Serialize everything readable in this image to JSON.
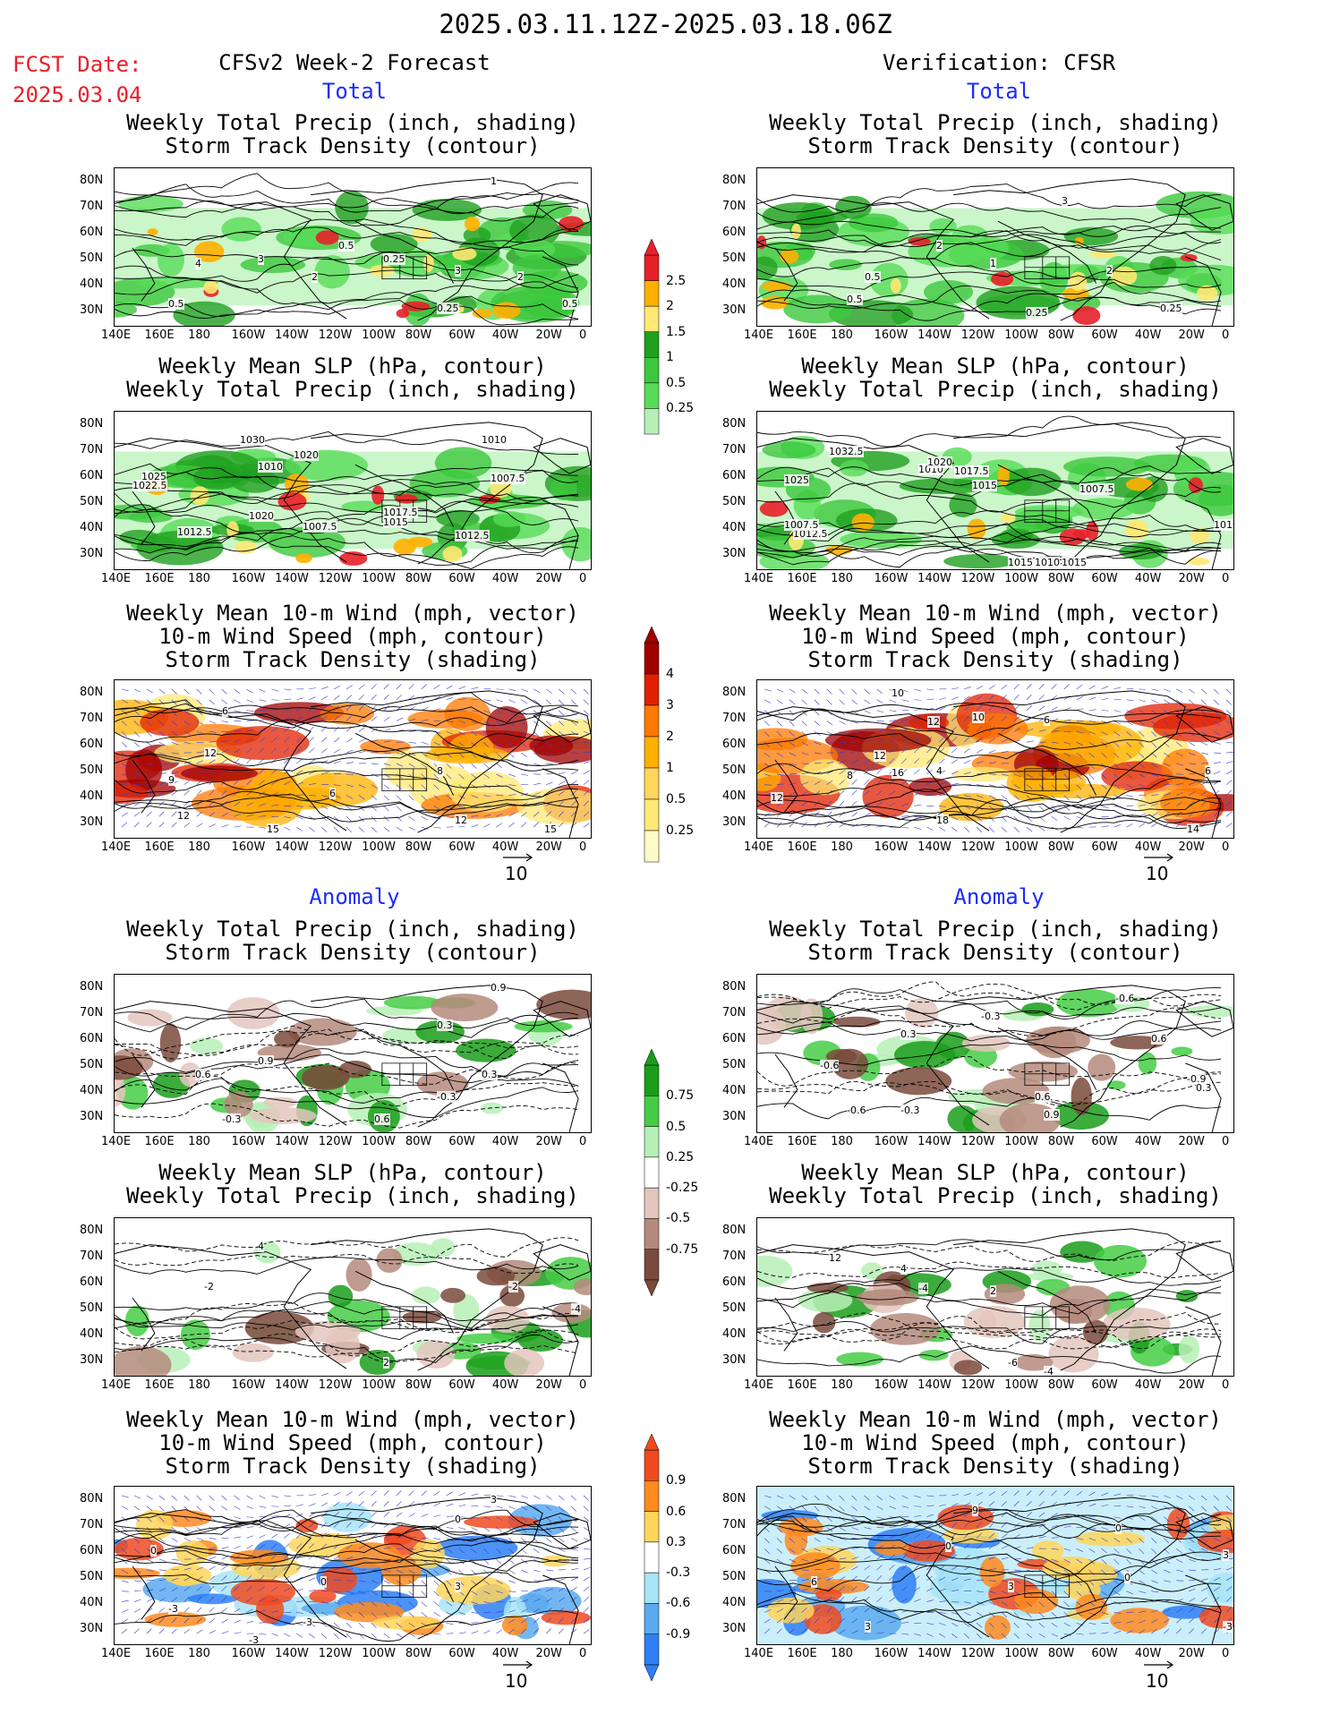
{
  "header": {
    "date_range": "2025.03.11.12Z-2025.03.18.06Z",
    "fcst_label": "FCST Date:",
    "fcst_date": "2025.03.04",
    "left_title": "CFSv2 Week-2 Forecast",
    "right_title": "Verification: CFSR"
  },
  "sections": {
    "total": "Total",
    "anomaly": "Anomaly"
  },
  "panel_titles": {
    "precip": [
      "Weekly Total Precip (inch, shading)",
      "Storm Track Density (contour)"
    ],
    "slp": [
      "Weekly Mean SLP (hPa, contour)",
      "Weekly Total Precip (inch, shading)"
    ],
    "wind": [
      "Weekly Mean 10-m Wind (mph, vector)",
      "10-m Wind Speed (mph, contour)",
      "Storm Track Density (shading)"
    ]
  },
  "axes": {
    "lat": [
      "80N",
      "70N",
      "60N",
      "50N",
      "40N",
      "30N"
    ],
    "lon": [
      "140E",
      "160E",
      "180",
      "160W",
      "140W",
      "120W",
      "100W",
      "80W",
      "60W",
      "40W",
      "20W",
      "0"
    ]
  },
  "vector_ref": "10",
  "colorbars": {
    "precip_total": [
      "2.5",
      "2",
      "1.5",
      "1",
      "0.5",
      "0.25"
    ],
    "std_total": [
      "4",
      "3",
      "2",
      "1",
      "0.5",
      "0.25"
    ],
    "precip_anom": [
      "0.75",
      "0.5",
      "0.25",
      "-0.25",
      "-0.5",
      "-0.75"
    ],
    "std_anom": [
      "0.9",
      "0.6",
      "0.3",
      "-0.3",
      "-0.6",
      "-0.9"
    ]
  },
  "contour_labels": {
    "fp": [
      "1",
      "0.5",
      "0.25",
      "4",
      "3",
      "2",
      "3",
      "2",
      "0.5",
      "0.25",
      "0.5"
    ],
    "vp": [
      "3",
      "2",
      "1",
      "0.5",
      "0.25",
      "2",
      "0.5",
      "0.25"
    ],
    "fs": [
      "1030",
      "1020",
      "1010",
      "1025",
      "1022.5",
      "1012.5",
      "1020",
      "1007.5",
      "1017.5",
      "1015",
      "1012.5",
      "1010",
      "1007.5"
    ],
    "vs": [
      "1032.5",
      "1010",
      "1020",
      "1017.5",
      "1015",
      "1025",
      "1012.5",
      "1007.5",
      "1007.5",
      "1015",
      "1010",
      "1015",
      "1010"
    ],
    "fw": [
      "6",
      "12",
      "9",
      "12",
      "15",
      "6",
      "8",
      "12",
      "15"
    ],
    "vw": [
      "10",
      "12",
      "6",
      "10",
      "12",
      "8",
      "16",
      "4",
      "12",
      "6",
      "18",
      "14"
    ],
    "fpa": [
      "0.9",
      "0.3",
      "0.6",
      "0.9",
      "0.3",
      "-0.3",
      "0.6",
      "-0.3"
    ],
    "vpa": [
      "-0.6",
      "-0.3",
      "0.3",
      "0.6",
      "-0.6",
      "-0.6",
      "-0.3",
      "0.6",
      "0.9",
      "-0.9",
      "0.3"
    ],
    "fsa": [
      "4",
      "-2",
      "-2",
      "-4",
      "2"
    ],
    "vsa": [
      "12",
      "4",
      "-4",
      "2",
      "-6",
      "-4"
    ],
    "fwa": [
      "3",
      "0",
      "0",
      "-3",
      "-3",
      "0",
      "3",
      "-3"
    ],
    "vwa": [
      "0",
      "9",
      "0",
      "3",
      "6",
      "3",
      "0",
      "-3",
      "3"
    ]
  }
}
